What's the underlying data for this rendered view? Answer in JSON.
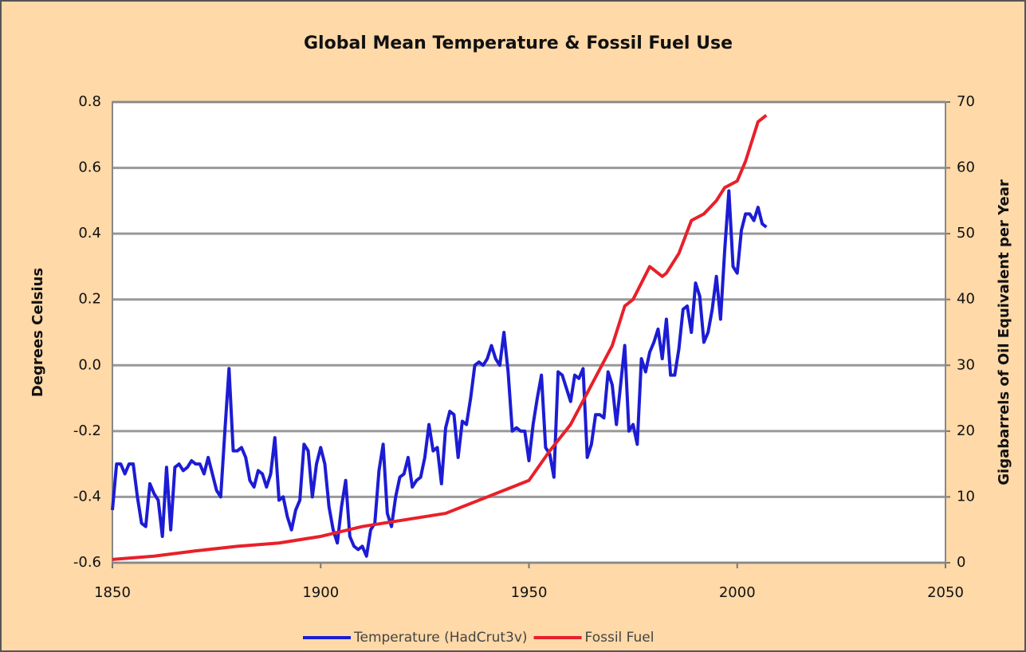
{
  "chart_data": {
    "type": "line",
    "title": "Global Mean Temperature & Fossil Fuel Use",
    "y_label": "Degrees Celsius",
    "y2_label": "Gigabarrels of Oil Equivalent per Year",
    "x": [
      1850,
      1851,
      1852,
      1853,
      1854,
      1855,
      1856,
      1857,
      1858,
      1859,
      1860,
      1861,
      1862,
      1863,
      1864,
      1865,
      1866,
      1867,
      1868,
      1869,
      1870,
      1871,
      1872,
      1873,
      1874,
      1875,
      1876,
      1877,
      1878,
      1879,
      1880,
      1881,
      1882,
      1883,
      1884,
      1885,
      1886,
      1887,
      1888,
      1889,
      1890,
      1891,
      1892,
      1893,
      1894,
      1895,
      1896,
      1897,
      1898,
      1899,
      1900,
      1901,
      1902,
      1903,
      1904,
      1905,
      1906,
      1907,
      1908,
      1909,
      1910,
      1911,
      1912,
      1913,
      1914,
      1915,
      1916,
      1917,
      1918,
      1919,
      1920,
      1921,
      1922,
      1923,
      1924,
      1925,
      1926,
      1927,
      1928,
      1929,
      1930,
      1931,
      1932,
      1933,
      1934,
      1935,
      1936,
      1937,
      1938,
      1939,
      1940,
      1941,
      1942,
      1943,
      1944,
      1945,
      1946,
      1947,
      1948,
      1949,
      1950,
      1951,
      1952,
      1953,
      1954,
      1955,
      1956,
      1957,
      1958,
      1959,
      1960,
      1961,
      1962,
      1963,
      1964,
      1965,
      1966,
      1967,
      1968,
      1969,
      1970,
      1971,
      1972,
      1973,
      1974,
      1975,
      1976,
      1977,
      1978,
      1979,
      1980,
      1981,
      1982,
      1983,
      1984,
      1985,
      1986,
      1987,
      1988,
      1989,
      1990,
      1991,
      1992,
      1993,
      1994,
      1995,
      1996,
      1997,
      1998,
      1999,
      2000,
      2001,
      2002,
      2003,
      2004,
      2005,
      2006,
      2007
    ],
    "series": [
      {
        "name": "Temperature (HadCrut3v)",
        "color": "#1c1cd4",
        "values": [
          -0.44,
          -0.3,
          -0.3,
          -0.33,
          -0.3,
          -0.3,
          -0.4,
          -0.48,
          -0.49,
          -0.36,
          -0.39,
          -0.41,
          -0.52,
          -0.31,
          -0.5,
          -0.31,
          -0.3,
          -0.32,
          -0.31,
          -0.29,
          -0.3,
          -0.3,
          -0.33,
          -0.28,
          -0.33,
          -0.38,
          -0.4,
          -0.2,
          -0.01,
          -0.26,
          -0.26,
          -0.25,
          -0.28,
          -0.35,
          -0.37,
          -0.32,
          -0.33,
          -0.37,
          -0.33,
          -0.22,
          -0.41,
          -0.4,
          -0.46,
          -0.5,
          -0.44,
          -0.41,
          -0.24,
          -0.26,
          -0.4,
          -0.3,
          -0.25,
          -0.3,
          -0.43,
          -0.5,
          -0.54,
          -0.43,
          -0.35,
          -0.52,
          -0.55,
          -0.56,
          -0.55,
          -0.58,
          -0.5,
          -0.48,
          -0.32,
          -0.24,
          -0.45,
          -0.49,
          -0.4,
          -0.34,
          -0.33,
          -0.28,
          -0.37,
          -0.35,
          -0.34,
          -0.28,
          -0.18,
          -0.26,
          -0.25,
          -0.36,
          -0.19,
          -0.14,
          -0.15,
          -0.28,
          -0.17,
          -0.18,
          -0.1,
          0.0,
          0.01,
          0.0,
          0.02,
          0.06,
          0.02,
          0.0,
          0.1,
          -0.02,
          -0.2,
          -0.19,
          -0.2,
          -0.2,
          -0.29,
          -0.18,
          -0.1,
          -0.03,
          -0.25,
          -0.27,
          -0.34,
          -0.02,
          -0.03,
          -0.07,
          -0.11,
          -0.03,
          -0.04,
          -0.01,
          -0.28,
          -0.24,
          -0.15,
          -0.15,
          -0.16,
          -0.02,
          -0.06,
          -0.18,
          -0.06,
          0.06,
          -0.2,
          -0.18,
          -0.24,
          0.02,
          -0.02,
          0.04,
          0.07,
          0.11,
          0.02,
          0.14,
          -0.03,
          -0.03,
          0.05,
          0.17,
          0.18,
          0.1,
          0.25,
          0.21,
          0.07,
          0.1,
          0.17,
          0.27,
          0.14,
          0.35,
          0.53,
          0.3,
          0.28,
          0.41,
          0.46,
          0.46,
          0.44,
          0.48,
          0.43,
          0.42
        ]
      },
      {
        "name": "Fossil Fuel",
        "color": "#e8202a",
        "axis": "y2",
        "x": [
          1850,
          1860,
          1870,
          1880,
          1890,
          1900,
          1910,
          1920,
          1930,
          1940,
          1950,
          1955,
          1960,
          1965,
          1970,
          1973,
          1975,
          1979,
          1982,
          1983,
          1986,
          1989,
          1992,
          1995,
          1997,
          2000,
          2002,
          2005,
          2007
        ],
        "values": [
          0.5,
          1,
          1.8,
          2.5,
          3,
          4,
          5.5,
          6.5,
          7.5,
          10,
          12.5,
          17,
          21,
          27,
          33,
          39,
          40,
          45,
          43.5,
          44,
          47,
          52,
          53,
          55,
          57,
          58,
          61,
          67,
          68
        ]
      }
    ],
    "xlim": [
      1850,
      2050
    ],
    "xticks": [
      1850,
      1900,
      1950,
      2000,
      2050
    ],
    "ylim": [
      -0.6,
      0.8
    ],
    "yticks": [
      0.8,
      0.6,
      0.4,
      0.2,
      {
        "value": 0,
        "label": "0.0"
      },
      -0.2,
      -0.4,
      -0.6
    ],
    "y2lim": [
      0,
      70
    ],
    "y2ticks": [
      0,
      10,
      20,
      30,
      40,
      50,
      60,
      70
    ],
    "grid": true
  }
}
